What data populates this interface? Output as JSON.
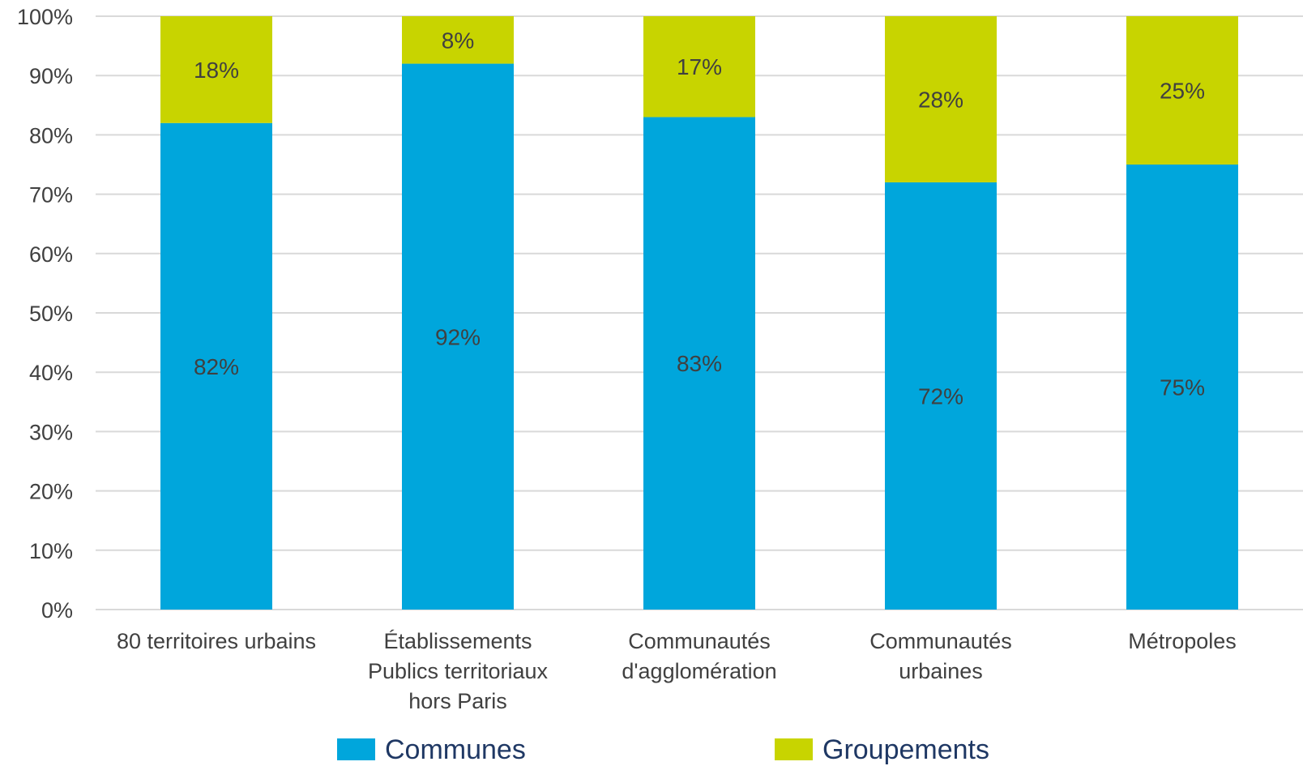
{
  "chart_data": {
    "type": "bar",
    "stacked": true,
    "percent_stacked": true,
    "categories": [
      [
        "80 territoires urbains"
      ],
      [
        "Établissements",
        "Publics territoriaux",
        "hors Paris"
      ],
      [
        "Communautés",
        "d'agglomération"
      ],
      [
        "Communautés",
        "urbaines"
      ],
      [
        "Métropoles"
      ]
    ],
    "series": [
      {
        "name": "Communes",
        "values": [
          82,
          92,
          83,
          72,
          75
        ],
        "labels": [
          "82%",
          "92%",
          "83%",
          "72%",
          "75%"
        ],
        "color": "#00a6dc"
      },
      {
        "name": "Groupements",
        "values": [
          18,
          8,
          17,
          28,
          25
        ],
        "labels": [
          "18%",
          "8%",
          "17%",
          "28%",
          "25%"
        ],
        "color": "#c8d400"
      }
    ],
    "ylim": [
      0,
      100
    ],
    "yticks": [
      "0%",
      "10%",
      "20%",
      "30%",
      "40%",
      "50%",
      "60%",
      "70%",
      "80%",
      "90%",
      "100%"
    ],
    "grid": true,
    "legend_position": "bottom",
    "gridline_color": "#d9d9d9"
  }
}
